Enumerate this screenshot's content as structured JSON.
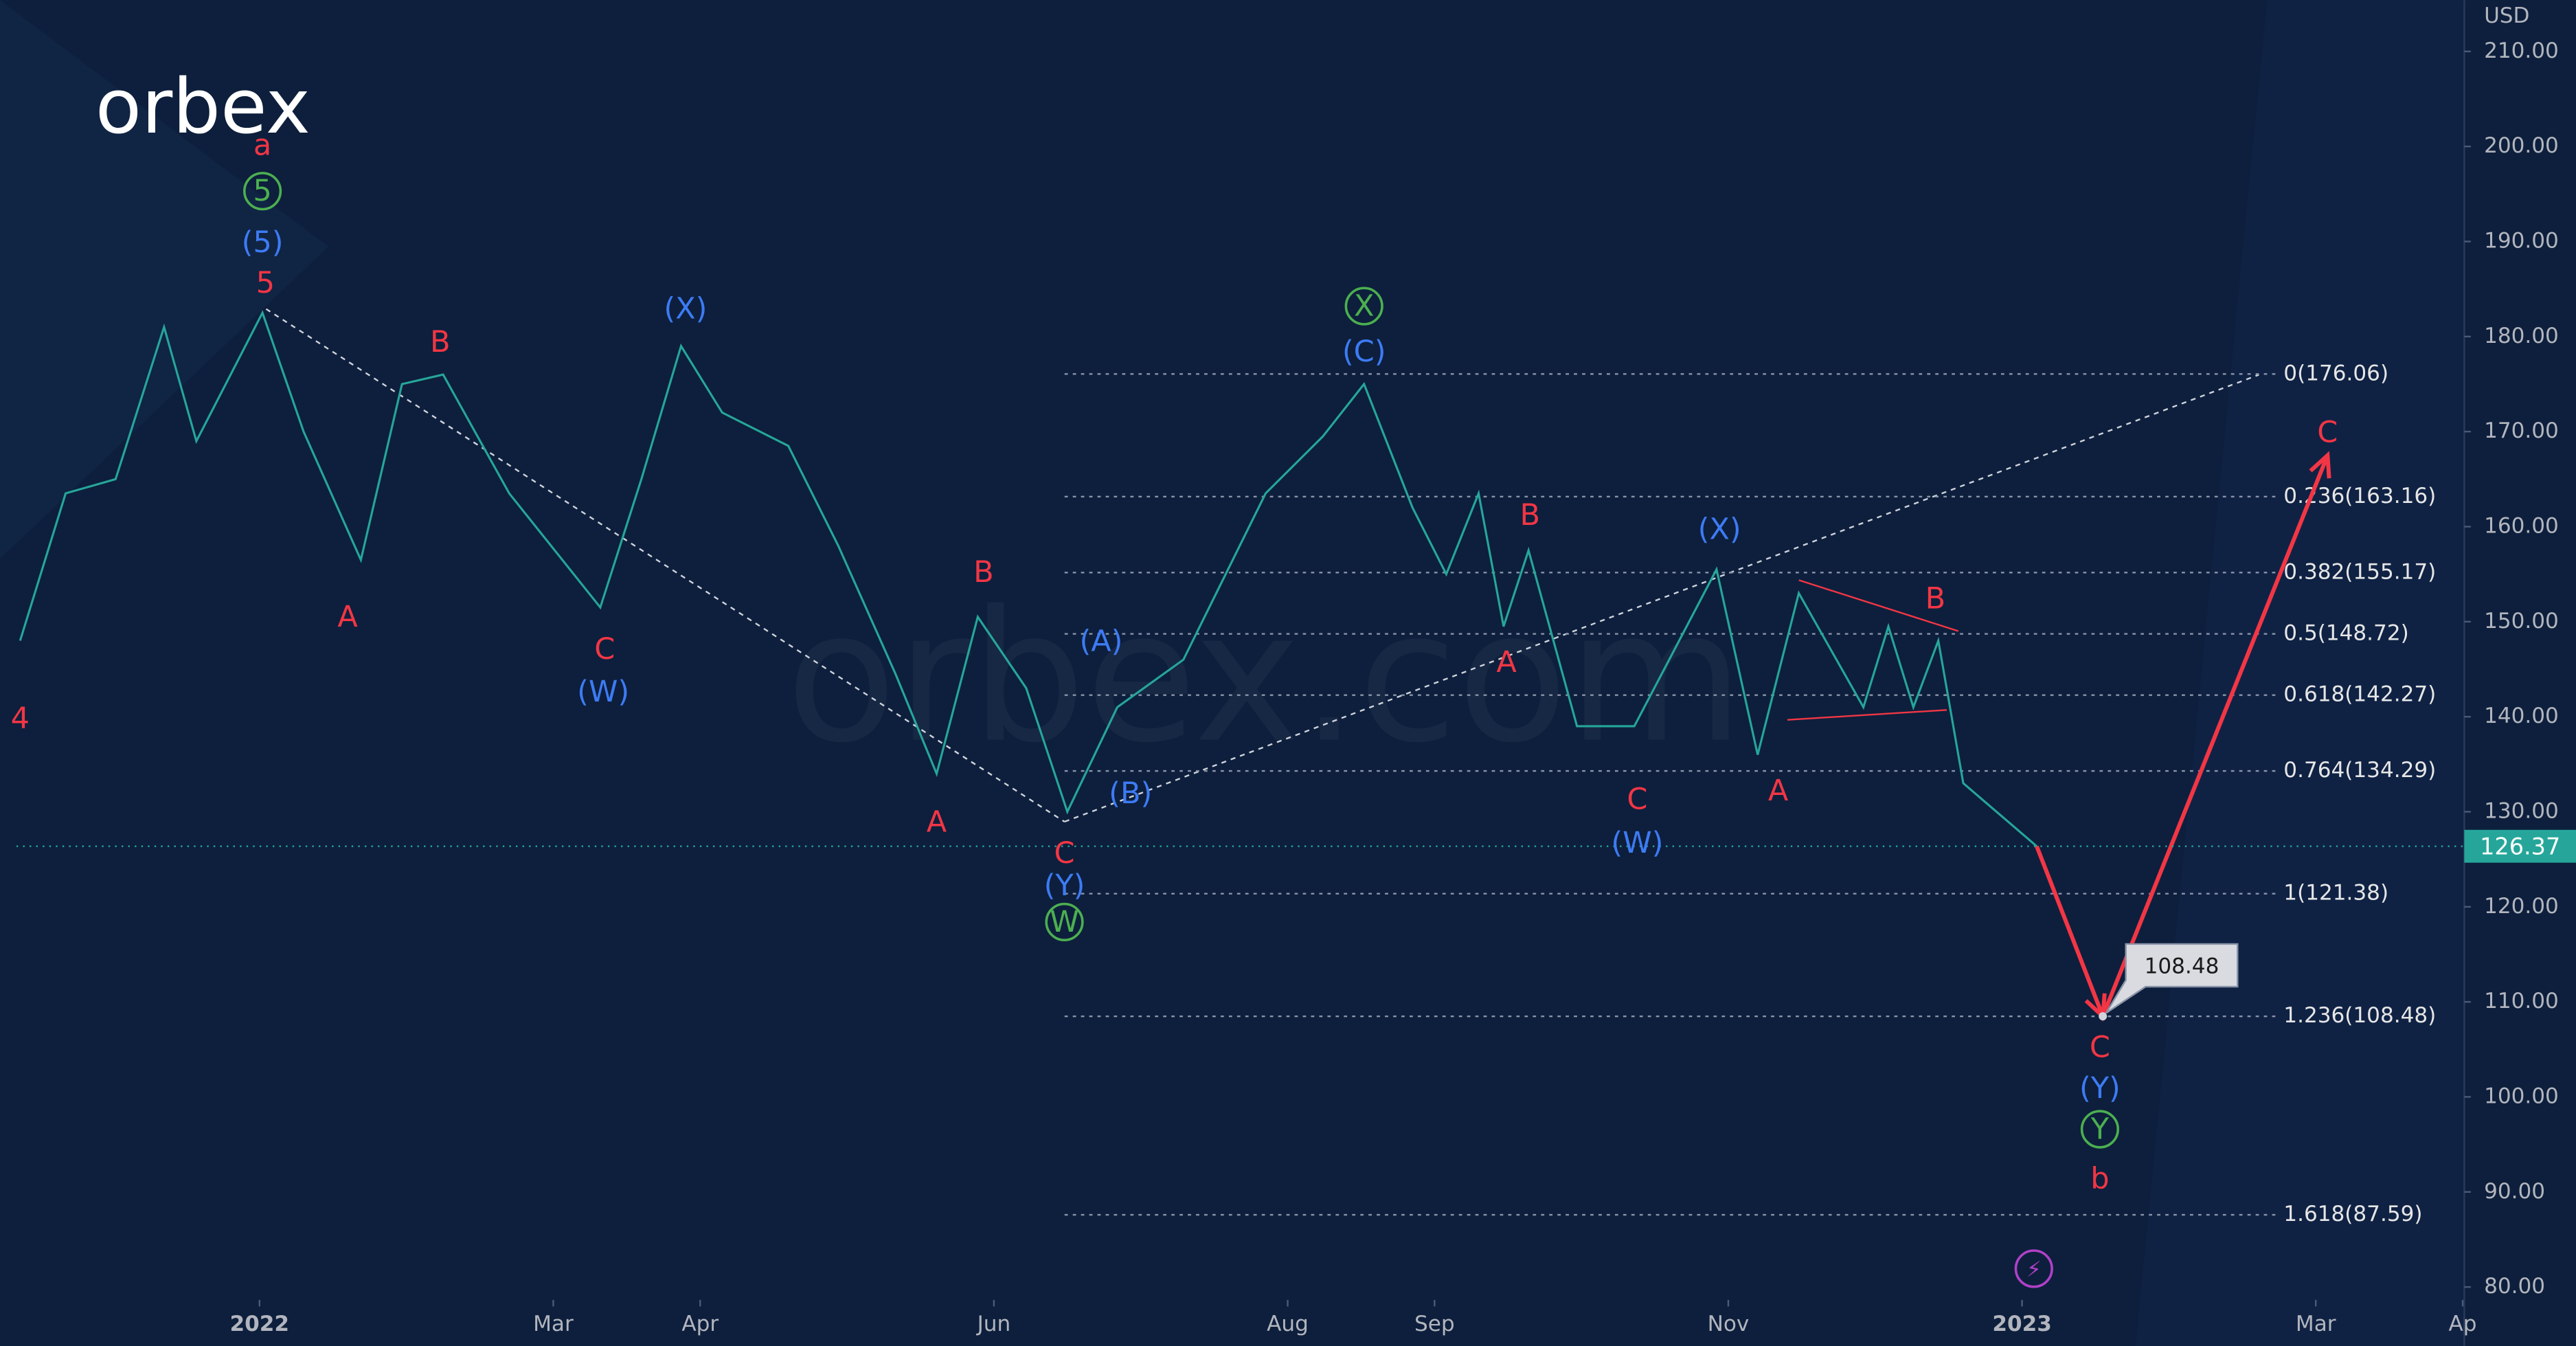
{
  "chart_data": {
    "type": "line",
    "title": "orbex",
    "watermark": "orbex.com",
    "y_unit": "USD",
    "xlim": [
      -1.767,
      15.011
    ],
    "ylim": [
      73.8,
      215.4
    ],
    "xticks": [
      {
        "value": 0,
        "label": "2022"
      },
      {
        "value": 2,
        "label": "Mar"
      },
      {
        "value": 3,
        "label": "Apr"
      },
      {
        "value": 5,
        "label": "Jun"
      },
      {
        "value": 7,
        "label": "Aug"
      },
      {
        "value": 8,
        "label": "Sep"
      },
      {
        "value": 10,
        "label": "Nov"
      },
      {
        "value": 12,
        "label": "2023"
      },
      {
        "value": 14,
        "label": "Mar"
      },
      {
        "value": 15,
        "label": "Ap"
      }
    ],
    "yticks": [
      {
        "value": 80,
        "label": "80.00"
      },
      {
        "value": 90,
        "label": "90.00"
      },
      {
        "value": 100,
        "label": "100.00"
      },
      {
        "value": 110,
        "label": "110.00"
      },
      {
        "value": 120,
        "label": "120.00"
      },
      {
        "value": 130,
        "label": "130.00"
      },
      {
        "value": 140,
        "label": "140.00"
      },
      {
        "value": 150,
        "label": "150.00"
      },
      {
        "value": 160,
        "label": "160.00"
      },
      {
        "value": 170,
        "label": "170.00"
      },
      {
        "value": 180,
        "label": "180.00"
      },
      {
        "value": 190,
        "label": "190.00"
      },
      {
        "value": 200,
        "label": "200.00"
      },
      {
        "value": 210,
        "label": "210.00"
      }
    ],
    "series": [
      {
        "color": "#26a69a",
        "x": [
          -1.63,
          -1.32,
          -0.98,
          -0.65,
          -0.43,
          0.02,
          0.3,
          0.69,
          0.97,
          1.25,
          1.7,
          2.32,
          2.6,
          2.87,
          3.15,
          3.6,
          3.94,
          4.33,
          4.61,
          4.89,
          5.22,
          5.5,
          5.84,
          6.29,
          6.85,
          7.24,
          7.52,
          7.85,
          8.08,
          8.3,
          8.47,
          8.64,
          8.97,
          9.36,
          9.92,
          10.2,
          10.48,
          10.92,
          11.09,
          11.26,
          11.43,
          11.6,
          12.1
        ],
        "values": [
          148,
          163.5,
          165,
          181,
          169,
          182.5,
          170,
          156.5,
          175,
          176,
          163.5,
          151.5,
          165,
          179,
          172,
          168.5,
          158,
          144.5,
          134,
          150.5,
          143,
          130,
          141,
          146,
          163.5,
          169.5,
          175,
          162,
          155,
          163.5,
          149.5,
          157.5,
          139,
          139,
          155.5,
          136,
          153,
          141,
          149.5,
          141,
          148,
          133,
          126.37
        ]
      },
      {
        "color": "#f23645",
        "x": [
          12.1,
          12.55,
          14.08
        ],
        "values": [
          126.37,
          108.48,
          167.5
        ]
      }
    ],
    "fib_levels": [
      {
        "label": "0(176.06)",
        "value": 176.06
      },
      {
        "label": "0.236(163.16)",
        "value": 163.16
      },
      {
        "label": "0.382(155.17)",
        "value": 155.17
      },
      {
        "label": "0.5(148.72)",
        "value": 148.72
      },
      {
        "label": "0.618(142.27)",
        "value": 142.27
      },
      {
        "label": "0.764(134.29)",
        "value": 134.29
      },
      {
        "label": "1(121.38)",
        "value": 121.38
      },
      {
        "label": "1.236(108.48)",
        "value": 108.48
      },
      {
        "label": "1.618(87.59)",
        "value": 87.59
      }
    ],
    "annotations": [
      {
        "text": "a",
        "color": "#f23645",
        "x": 0.02,
        "y": 200.1
      },
      {
        "text": "5",
        "color": "#4caf50",
        "x": 0.02,
        "y": 195.3,
        "circled": true
      },
      {
        "text": "(5)",
        "color": "#3d7bf5",
        "x": 0.02,
        "y": 189.9
      },
      {
        "text": "5",
        "color": "#f23645",
        "x": 0.04,
        "y": 185.6
      },
      {
        "text": "4",
        "color": "#f23645",
        "x": -1.63,
        "y": 139.8
      },
      {
        "text": "A",
        "color": "#f23645",
        "x": 0.6,
        "y": 150.5
      },
      {
        "text": "B",
        "color": "#f23645",
        "x": 1.23,
        "y": 179.4
      },
      {
        "text": "C",
        "color": "#f23645",
        "x": 2.35,
        "y": 147.1
      },
      {
        "text": "(W)",
        "color": "#3d7bf5",
        "x": 2.34,
        "y": 142.6
      },
      {
        "text": "(X)",
        "color": "#3d7bf5",
        "x": 2.9,
        "y": 182.9
      },
      {
        "text": "B",
        "color": "#f23645",
        "x": 4.93,
        "y": 155.2
      },
      {
        "text": "A",
        "color": "#f23645",
        "x": 4.61,
        "y": 128.9
      },
      {
        "text": "C",
        "color": "#f23645",
        "x": 5.48,
        "y": 125.6
      },
      {
        "text": "(Y)",
        "color": "#3d7bf5",
        "x": 5.48,
        "y": 122.2
      },
      {
        "text": "W",
        "color": "#4caf50",
        "x": 5.48,
        "y": 118.4,
        "circled": true
      },
      {
        "text": "(A)",
        "color": "#3d7bf5",
        "x": 5.73,
        "y": 147.9
      },
      {
        "text": "(B)",
        "color": "#3d7bf5",
        "x": 5.93,
        "y": 131.9
      },
      {
        "text": "X",
        "color": "#4caf50",
        "x": 7.52,
        "y": 183.2,
        "circled": true
      },
      {
        "text": "(C)",
        "color": "#3d7bf5",
        "x": 7.52,
        "y": 178.4
      },
      {
        "text": "B",
        "color": "#f23645",
        "x": 8.65,
        "y": 161.2
      },
      {
        "text": "A",
        "color": "#f23645",
        "x": 8.49,
        "y": 145.7
      },
      {
        "text": "C",
        "color": "#f23645",
        "x": 9.38,
        "y": 131.3
      },
      {
        "text": "(W)",
        "color": "#3d7bf5",
        "x": 9.38,
        "y": 126.7
      },
      {
        "text": "(X)",
        "color": "#3d7bf5",
        "x": 9.94,
        "y": 159.7
      },
      {
        "text": "A",
        "color": "#f23645",
        "x": 10.34,
        "y": 132.2
      },
      {
        "text": "B",
        "color": "#f23645",
        "x": 11.41,
        "y": 152.4
      },
      {
        "text": "C",
        "color": "#f23645",
        "x": 12.53,
        "y": 105.2
      },
      {
        "text": "(Y)",
        "color": "#3d7bf5",
        "x": 12.53,
        "y": 100.9
      },
      {
        "text": "Y",
        "color": "#4caf50",
        "x": 12.53,
        "y": 96.6,
        "circled": true
      },
      {
        "text": "b",
        "color": "#f23645",
        "x": 12.53,
        "y": 91.4
      },
      {
        "text": "C",
        "color": "#f23645",
        "x": 14.08,
        "y": 169.9
      }
    ]
  }
}
